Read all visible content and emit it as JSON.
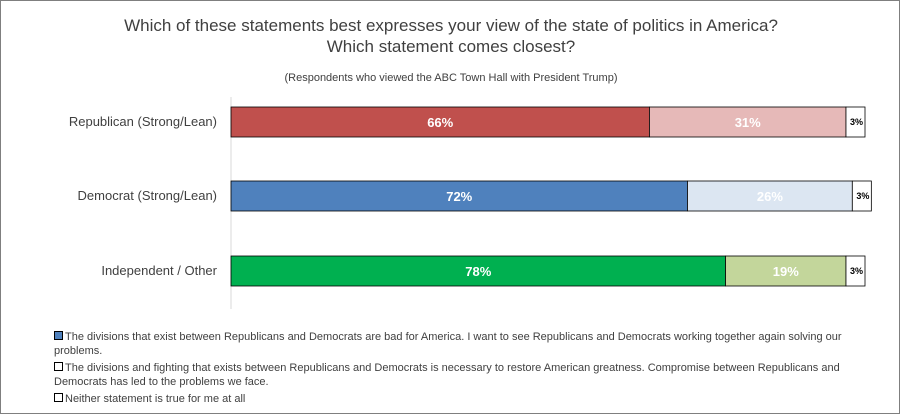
{
  "title_line1": "Which of these statements best expresses your view of the state of politics in America?",
  "title_line2": "Which statement comes closest?",
  "subtitle": "(Respondents who viewed the ABC Town Hall with President Trump)",
  "chart_data": {
    "type": "bar",
    "orientation": "horizontal",
    "stacked": true,
    "percent_stacked": true,
    "categories": [
      "Republican (Strong/Lean)",
      "Democrat (Strong/Lean)",
      "Independent / Other"
    ],
    "series": [
      {
        "name": "The divisions that exist between Republicans and Democrats are bad for America. I want to see Republicans and Democrats working together again solving our problems.",
        "values": [
          66,
          72,
          78
        ],
        "labels": [
          "66%",
          "72%",
          "78%"
        ],
        "colors": [
          "#c0504d",
          "#4f81bd",
          "#00b050"
        ]
      },
      {
        "name": "The divisions and fighting that exists between Republicans and Democrats is necessary to restore American greatness.  Compromise between Republicans and Democrats has led to the problems we face.",
        "values": [
          31,
          26,
          19
        ],
        "labels": [
          "31%",
          "26%",
          "19%"
        ],
        "colors": [
          "#e6b9b8",
          "#dce6f2",
          "#c3d69b"
        ]
      },
      {
        "name": "Neither statement is true for me at all",
        "values": [
          3,
          3,
          3
        ],
        "labels": [
          "3%",
          "3%",
          "3%"
        ],
        "colors": [
          "#ffffff",
          "#ffffff",
          "#ffffff"
        ]
      }
    ],
    "legend_swatch_colors": [
      "#4f81bd",
      "#ffffff",
      "#ffffff"
    ],
    "legend_position": "bottom",
    "grid": false
  }
}
